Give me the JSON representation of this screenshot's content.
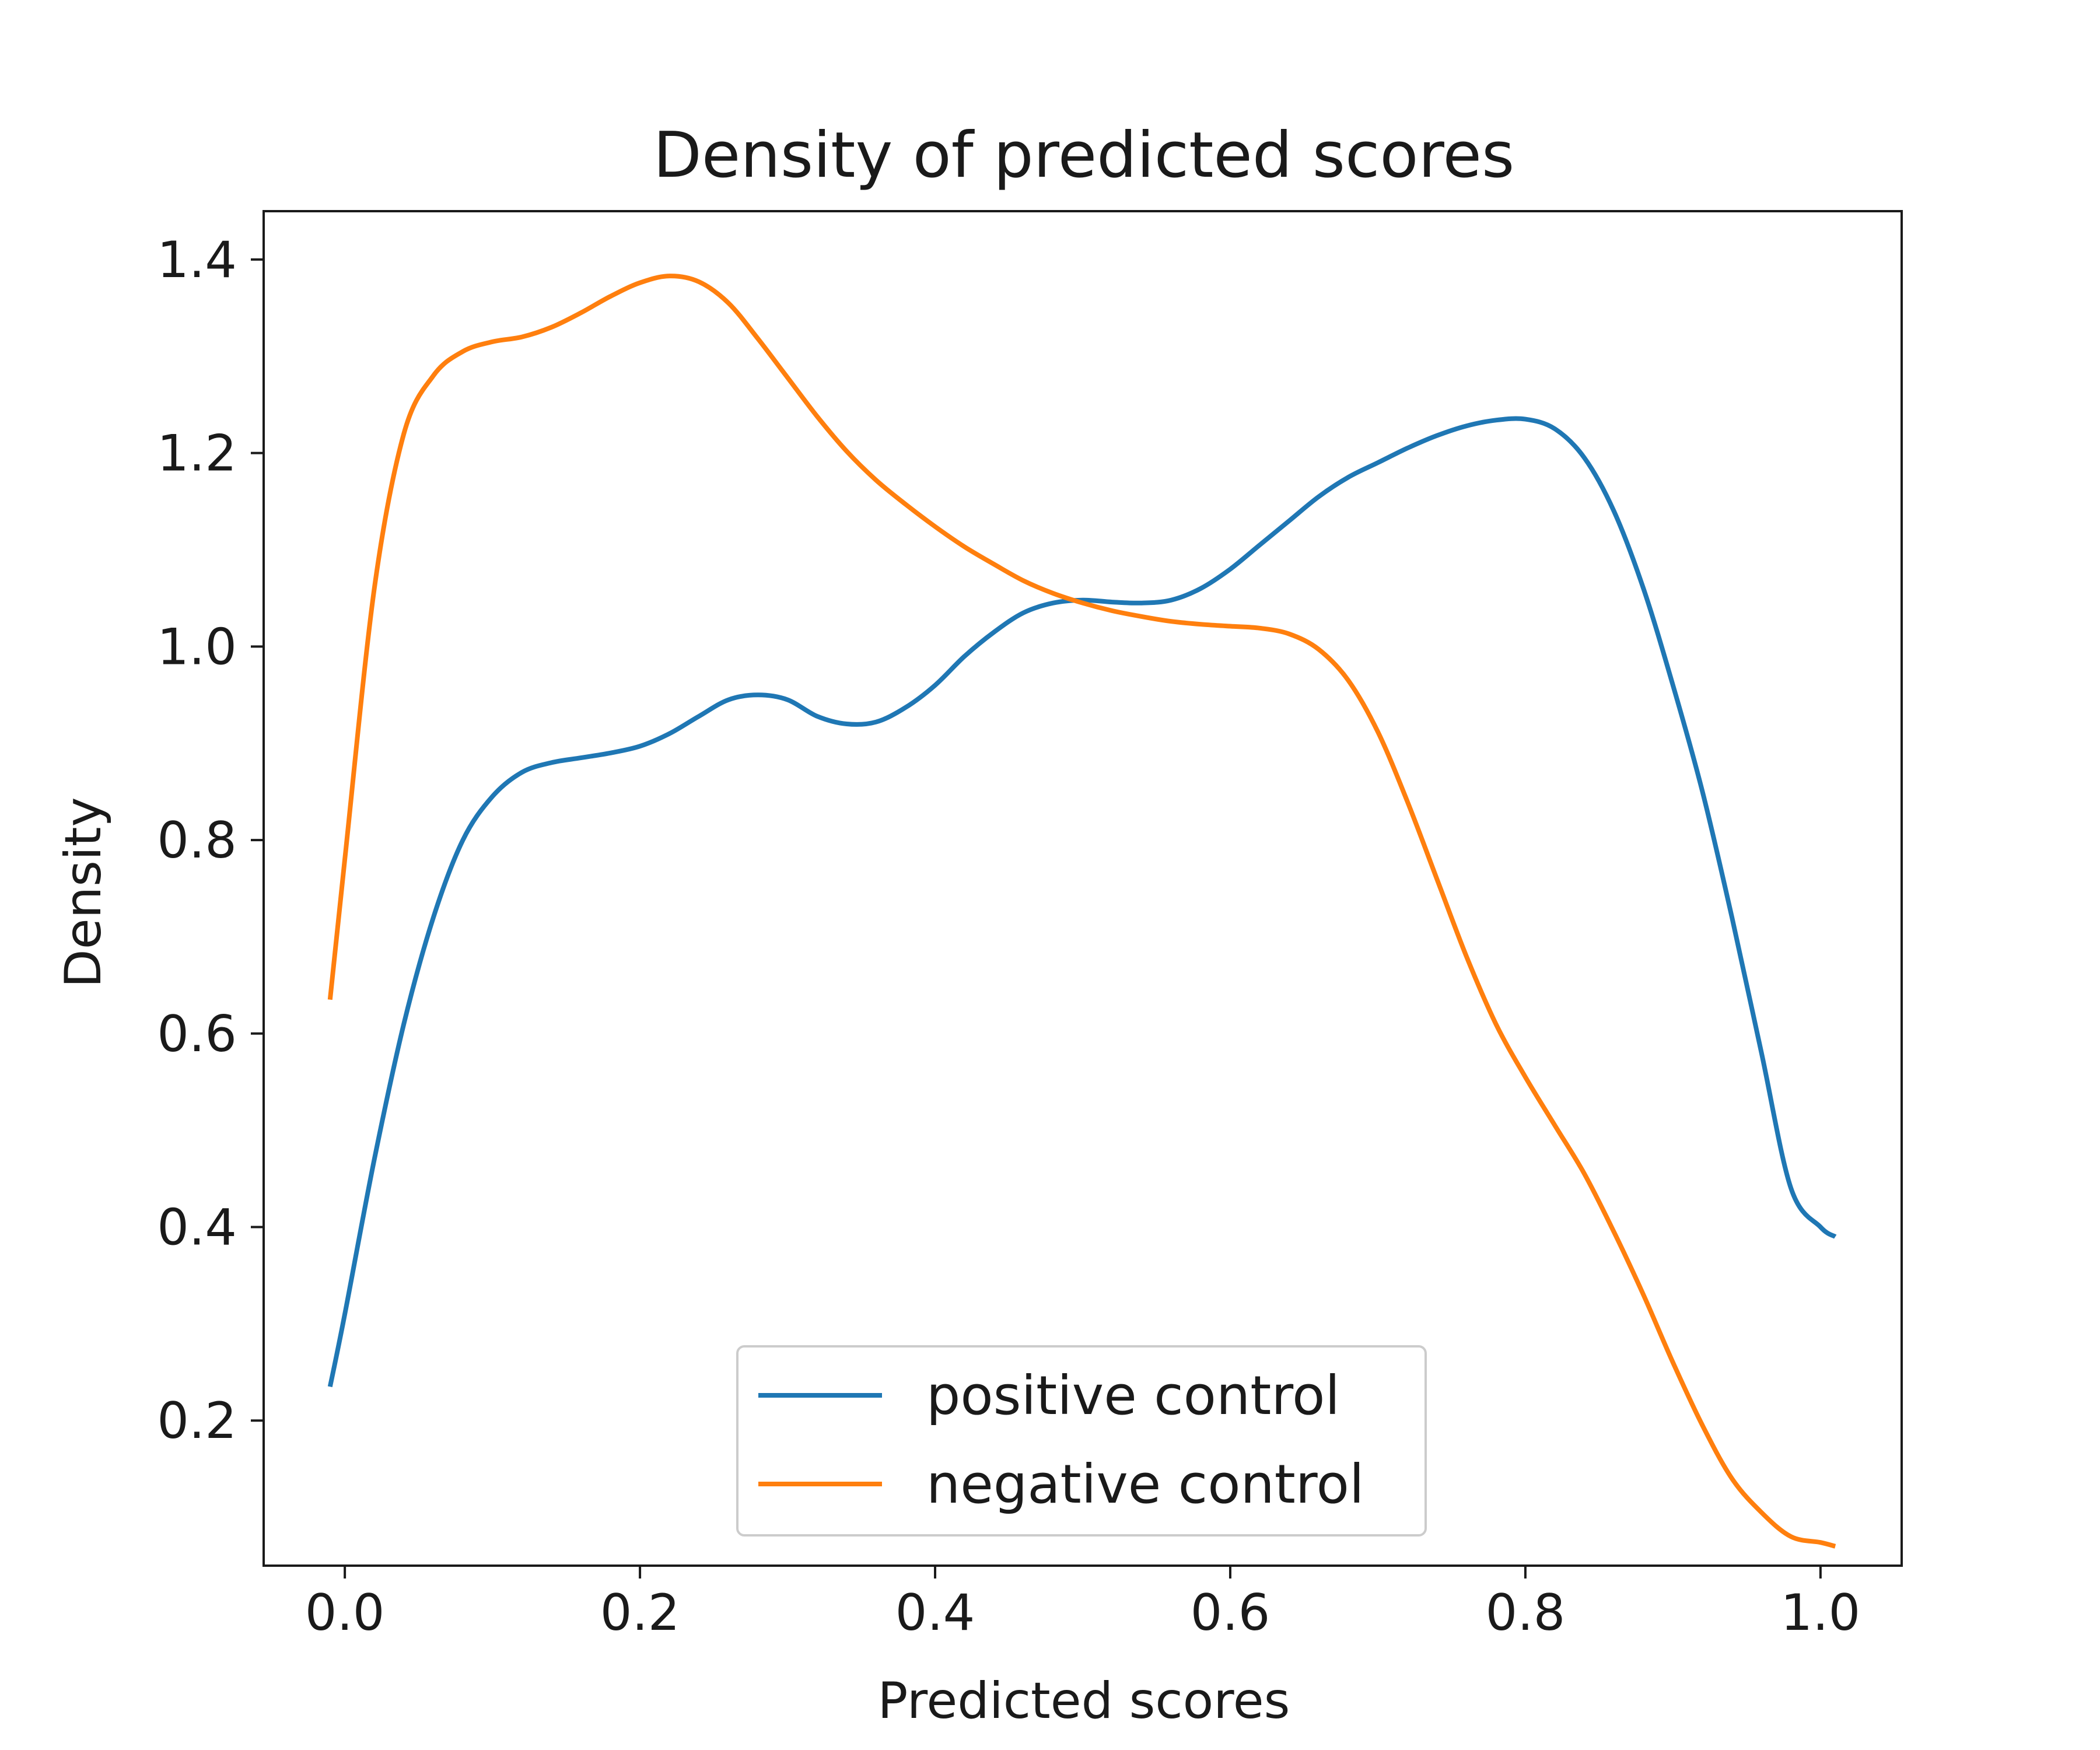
{
  "chart_data": {
    "type": "line",
    "title": "Density of predicted scores",
    "xlabel": "Predicted scores",
    "ylabel": "Density",
    "xlim": [
      -0.055,
      1.055
    ],
    "ylim": [
      0.05,
      1.45
    ],
    "xticks": [
      {
        "value": 0.0,
        "label": "0.0"
      },
      {
        "value": 0.2,
        "label": "0.2"
      },
      {
        "value": 0.4,
        "label": "0.4"
      },
      {
        "value": 0.6,
        "label": "0.6"
      },
      {
        "value": 0.8,
        "label": "0.8"
      },
      {
        "value": 1.0,
        "label": "1.0"
      }
    ],
    "yticks": [
      {
        "value": 0.2,
        "label": "0.2"
      },
      {
        "value": 0.4,
        "label": "0.4"
      },
      {
        "value": 0.6,
        "label": "0.6"
      },
      {
        "value": 0.8,
        "label": "0.8"
      },
      {
        "value": 1.0,
        "label": "1.0"
      },
      {
        "value": 1.2,
        "label": "1.2"
      },
      {
        "value": 1.4,
        "label": "1.4"
      }
    ],
    "grid": false,
    "legend_position": "lower-center",
    "series": [
      {
        "name": "positive control",
        "color": "#1f77b4",
        "x": [
          -0.01,
          0.0,
          0.02,
          0.04,
          0.06,
          0.08,
          0.1,
          0.12,
          0.14,
          0.16,
          0.18,
          0.2,
          0.22,
          0.24,
          0.26,
          0.28,
          0.3,
          0.32,
          0.34,
          0.36,
          0.38,
          0.4,
          0.42,
          0.44,
          0.46,
          0.48,
          0.5,
          0.52,
          0.54,
          0.56,
          0.58,
          0.6,
          0.62,
          0.64,
          0.66,
          0.68,
          0.7,
          0.72,
          0.74,
          0.76,
          0.78,
          0.8,
          0.82,
          0.84,
          0.86,
          0.88,
          0.9,
          0.92,
          0.94,
          0.96,
          0.98,
          1.0,
          1.01
        ],
        "y": [
          0.235,
          0.31,
          0.47,
          0.61,
          0.72,
          0.8,
          0.845,
          0.87,
          0.88,
          0.885,
          0.89,
          0.897,
          0.91,
          0.928,
          0.945,
          0.95,
          0.945,
          0.928,
          0.92,
          0.922,
          0.937,
          0.96,
          0.99,
          1.015,
          1.035,
          1.045,
          1.048,
          1.046,
          1.045,
          1.048,
          1.06,
          1.08,
          1.105,
          1.13,
          1.155,
          1.175,
          1.19,
          1.205,
          1.218,
          1.228,
          1.234,
          1.235,
          1.225,
          1.195,
          1.14,
          1.06,
          0.96,
          0.85,
          0.72,
          0.58,
          0.44,
          0.4,
          0.39
        ]
      },
      {
        "name": "negative control",
        "color": "#ff7f0e",
        "x": [
          -0.01,
          0.0,
          0.02,
          0.04,
          0.06,
          0.08,
          0.1,
          0.12,
          0.14,
          0.16,
          0.18,
          0.2,
          0.22,
          0.24,
          0.26,
          0.28,
          0.3,
          0.32,
          0.34,
          0.36,
          0.38,
          0.4,
          0.42,
          0.44,
          0.46,
          0.48,
          0.5,
          0.52,
          0.54,
          0.56,
          0.58,
          0.6,
          0.62,
          0.64,
          0.66,
          0.68,
          0.7,
          0.72,
          0.74,
          0.76,
          0.78,
          0.8,
          0.82,
          0.84,
          0.86,
          0.88,
          0.9,
          0.92,
          0.94,
          0.96,
          0.98,
          1.0,
          1.01
        ],
        "y": [
          0.635,
          0.78,
          1.06,
          1.22,
          1.28,
          1.305,
          1.315,
          1.32,
          1.33,
          1.345,
          1.362,
          1.376,
          1.383,
          1.377,
          1.355,
          1.318,
          1.278,
          1.238,
          1.202,
          1.172,
          1.147,
          1.124,
          1.103,
          1.085,
          1.068,
          1.055,
          1.045,
          1.037,
          1.031,
          1.026,
          1.023,
          1.021,
          1.019,
          1.013,
          0.997,
          0.965,
          0.912,
          0.84,
          0.76,
          0.68,
          0.61,
          0.555,
          0.505,
          0.455,
          0.395,
          0.33,
          0.26,
          0.195,
          0.14,
          0.105,
          0.08,
          0.074,
          0.07
        ]
      }
    ]
  }
}
